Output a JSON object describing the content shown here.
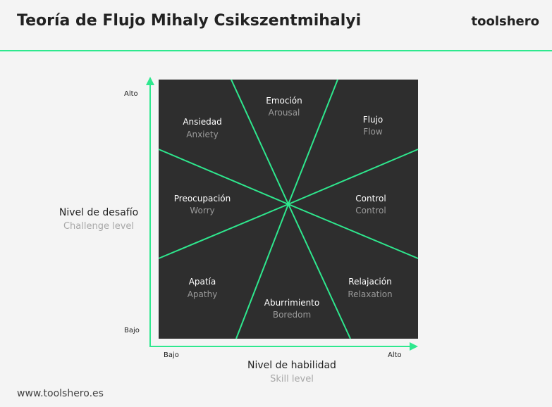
{
  "header": {
    "title": "Teoría de Flujo Mihaly Csikszentmihalyi",
    "brand": "toolshero"
  },
  "footer": {
    "url": "www.toolshero.es"
  },
  "axes": {
    "y": {
      "label": "Nivel de desafío",
      "sublabel": "Challenge level",
      "low": "Bajo",
      "high": "Alto"
    },
    "x": {
      "label": "Nivel de habilidad",
      "sublabel": "Skill level",
      "low": "Bajo",
      "high": "Alto"
    }
  },
  "regions": {
    "anxiety": {
      "es": "Ansiedad",
      "en": "Anxiety"
    },
    "arousal": {
      "es": "Emoción",
      "en": "Arousal"
    },
    "flow": {
      "es": "Flujo",
      "en": "Flow"
    },
    "worry": {
      "es": "Preocupación",
      "en": "Worry"
    },
    "control": {
      "es": "Control",
      "en": "Control"
    },
    "apathy": {
      "es": "Apatía",
      "en": "Apathy"
    },
    "boredom": {
      "es": "Aburrimiento",
      "en": "Boredom"
    },
    "relaxation": {
      "es": "Relajación",
      "en": "Relaxation"
    }
  },
  "colors": {
    "accent": "#2ee88e",
    "panel": "#2e2e2e",
    "background": "#f4f4f4"
  }
}
